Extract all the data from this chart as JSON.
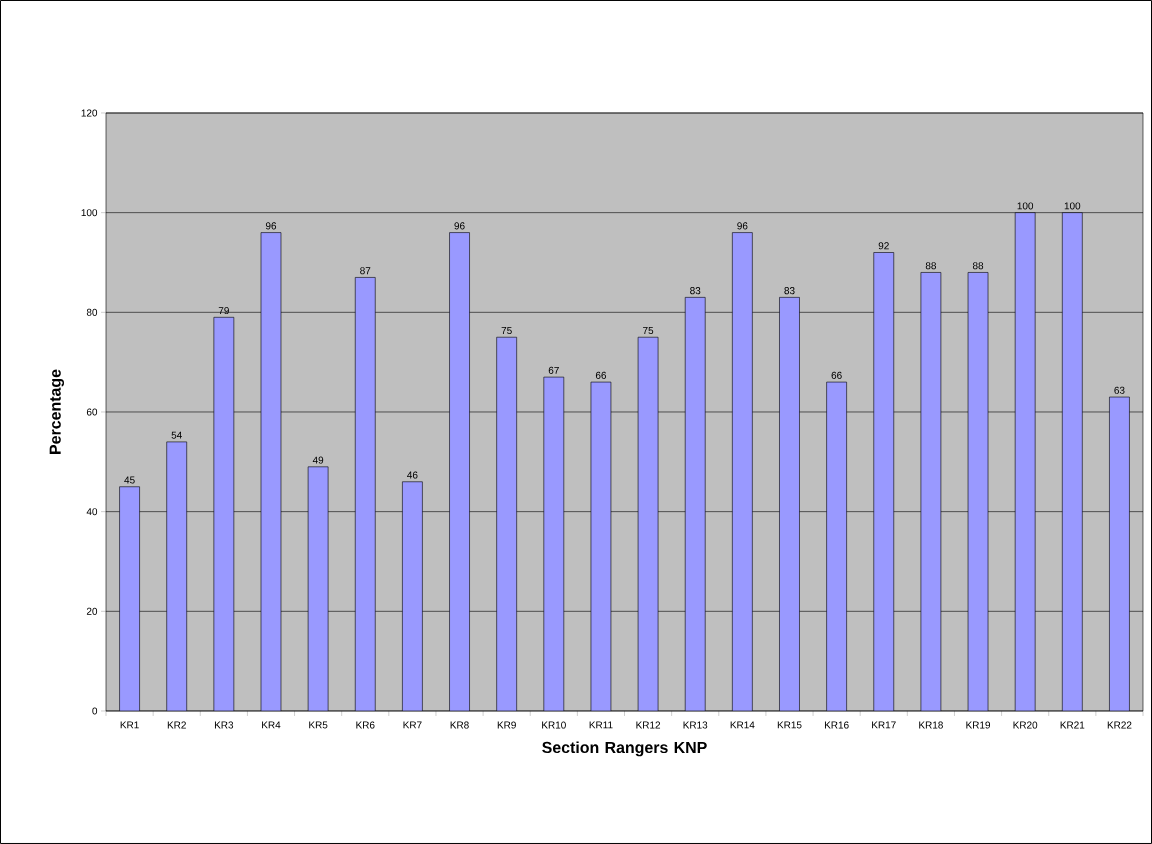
{
  "chart_data": {
    "type": "bar",
    "xlabel": "Section Rangers KNP",
    "ylabel": "Percentage",
    "categories": [
      "KR1",
      "KR2",
      "KR3",
      "KR4",
      "KR5",
      "KR6",
      "KR7",
      "KR8",
      "KR9",
      "KR10",
      "KR11",
      "KR12",
      "KR13",
      "KR14",
      "KR15",
      "KR16",
      "KR17",
      "KR18",
      "KR19",
      "KR20",
      "KR21",
      "KR22"
    ],
    "values": [
      45,
      54,
      79,
      96,
      49,
      87,
      46,
      96,
      75,
      67,
      66,
      75,
      83,
      96,
      83,
      66,
      92,
      88,
      88,
      100,
      100,
      63
    ],
    "color": "#9999ff",
    "ylim": [
      0,
      120
    ],
    "yticks": [
      0,
      20,
      40,
      60,
      80,
      100,
      120
    ],
    "grid": "y",
    "data_labels": true
  }
}
